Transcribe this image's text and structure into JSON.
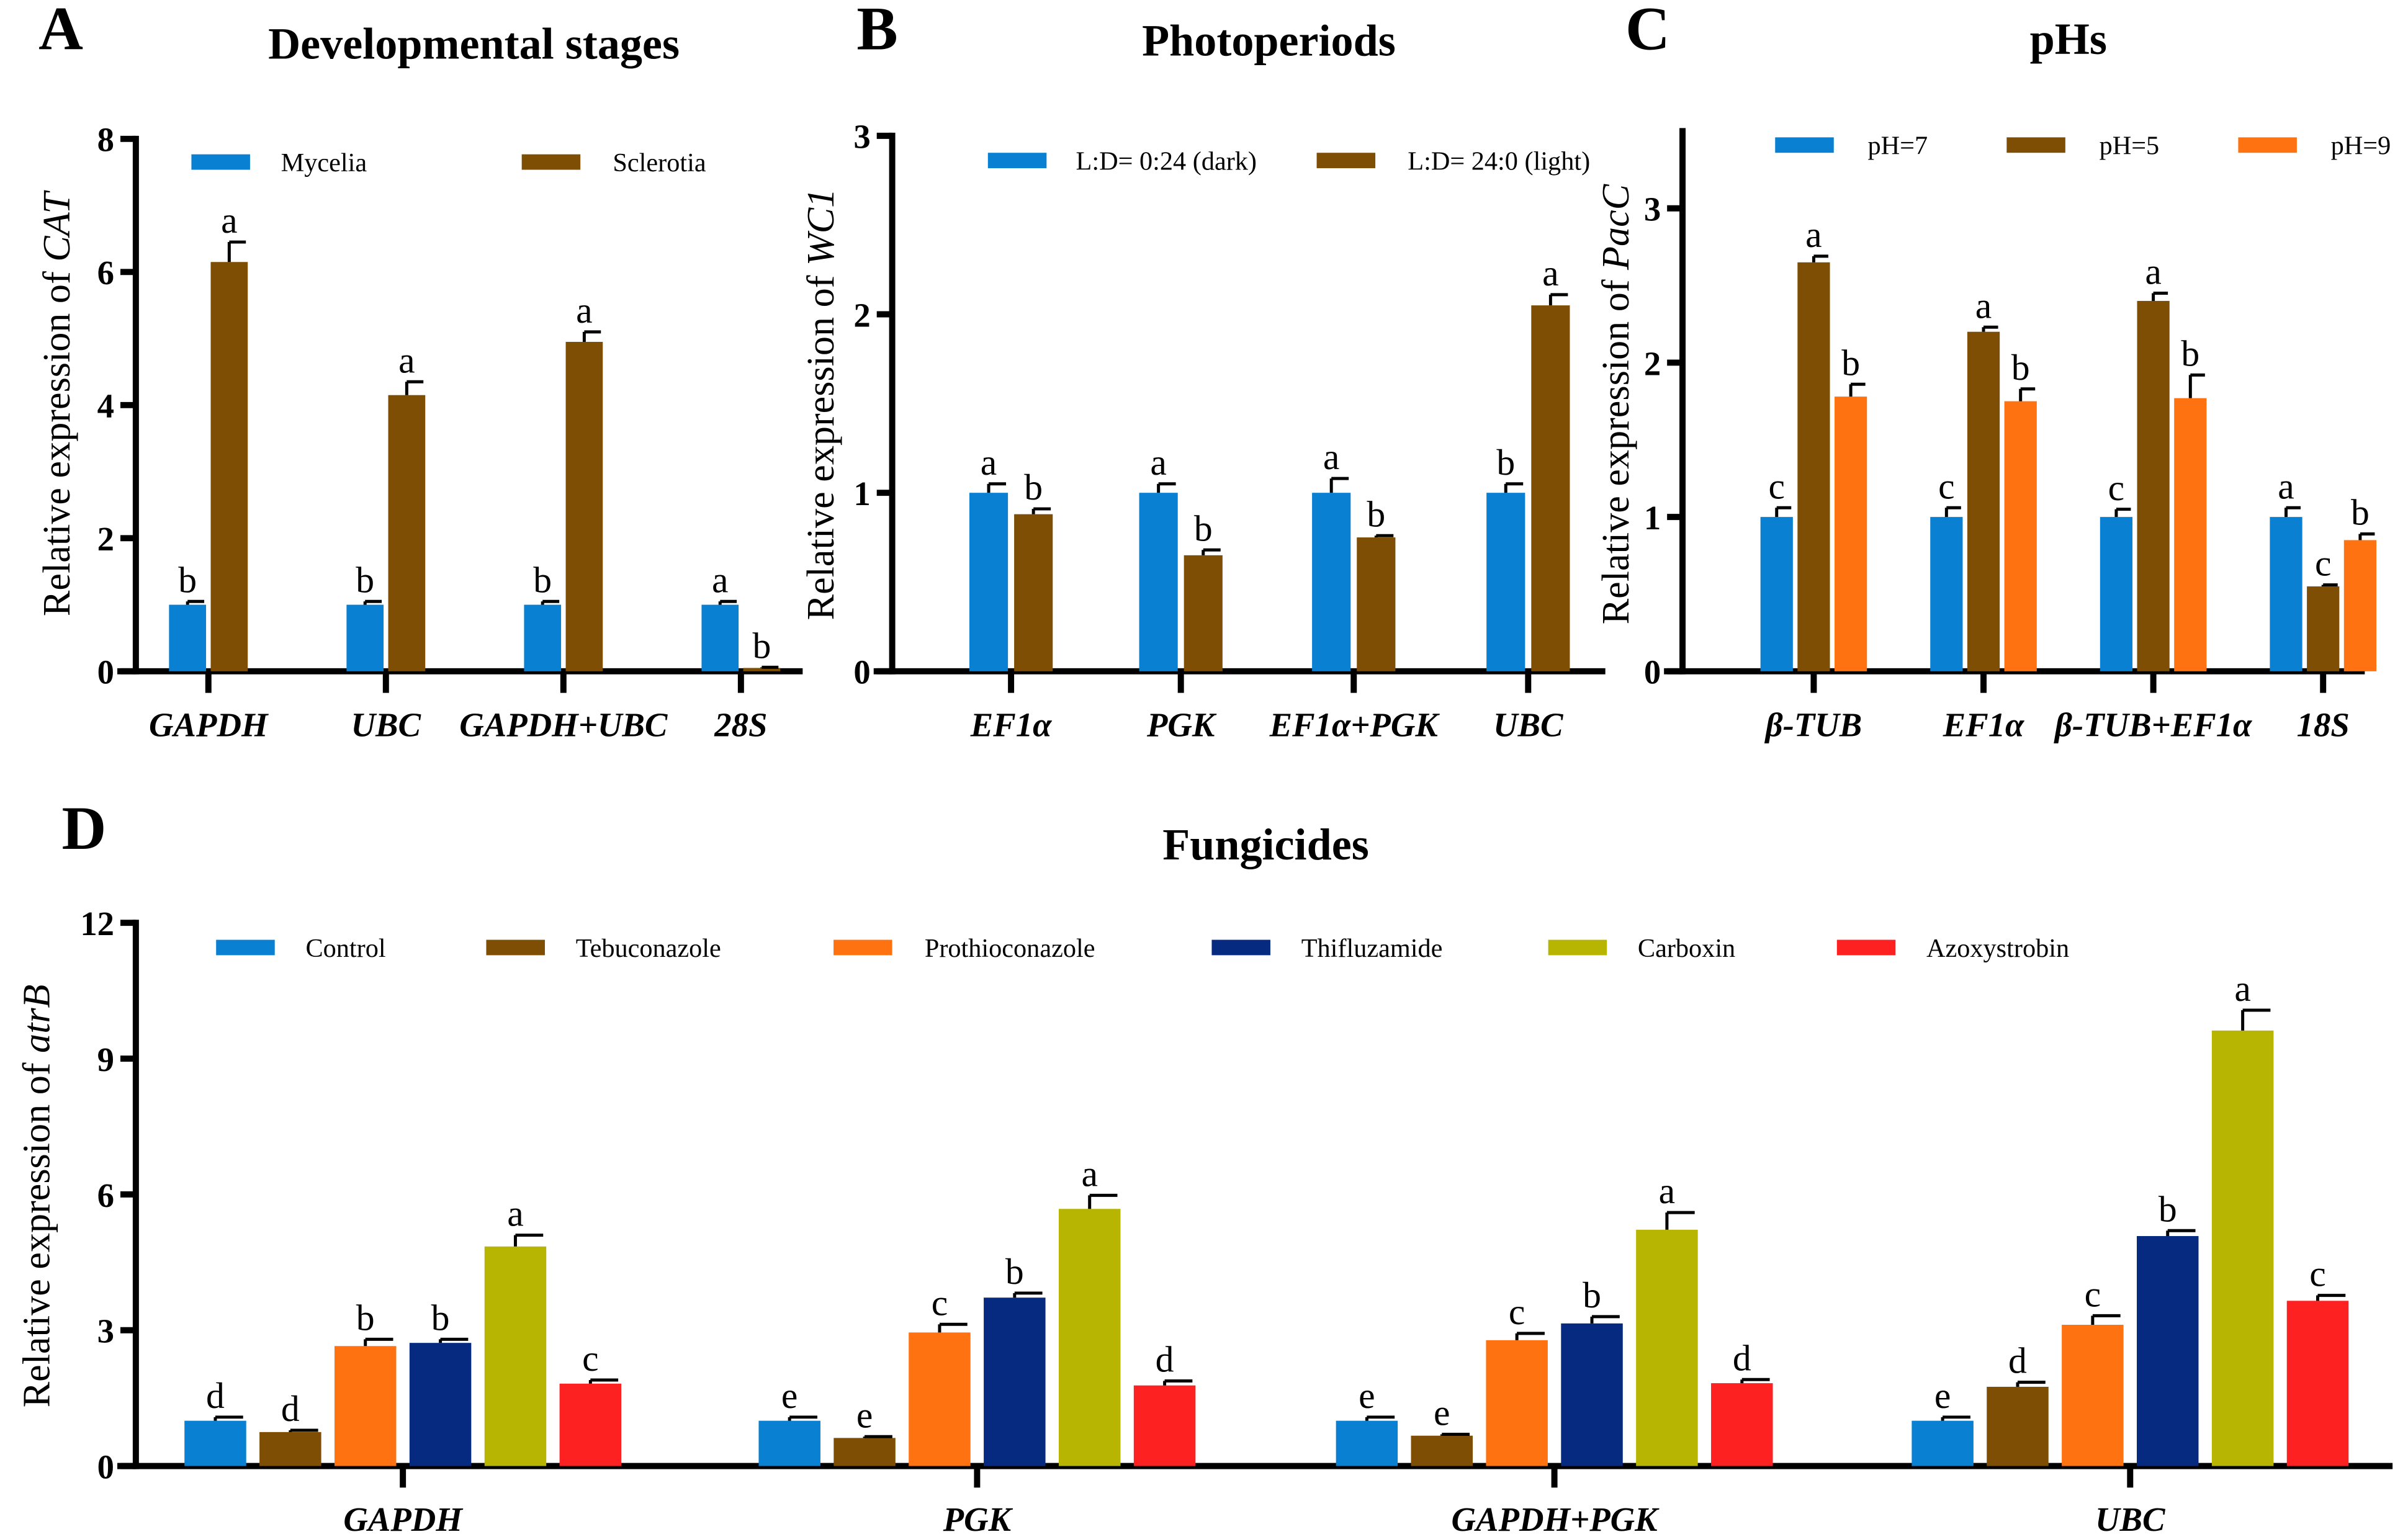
{
  "colors": {
    "blue": "#0a80d2",
    "brown": "#7d4e04",
    "orange": "#ff7212",
    "navy": "#062a80",
    "olive": "#b7b402",
    "red": "#fd2121"
  },
  "chart_data": [
    {
      "type": "bar",
      "panel": "A",
      "title": "Developmental stages",
      "ylabel_prefix": "Relative expression of ",
      "ylabel_gene": "CAT",
      "ylim": [
        0,
        8
      ],
      "yticks": [
        "0",
        "2",
        "4",
        "6",
        "8"
      ],
      "categories": [
        "GAPDH",
        "UBC",
        "GAPDH+UBC",
        "28S"
      ],
      "legend_position": "top",
      "series": [
        {
          "name": "Mycelia",
          "color": "blue",
          "values": [
            1.0,
            1.0,
            1.0,
            1.0
          ],
          "errors": [
            0.05,
            0.05,
            0.05,
            0.05
          ],
          "letters": [
            "b",
            "b",
            "b",
            "a"
          ]
        },
        {
          "name": "Sclerotia",
          "color": "brown",
          "values": [
            6.15,
            4.15,
            4.95,
            0.05
          ],
          "errors": [
            0.3,
            0.2,
            0.15,
            0.01
          ],
          "letters": [
            "a",
            "a",
            "a",
            "b"
          ]
        }
      ]
    },
    {
      "type": "bar",
      "panel": "B",
      "title": "Photoperiods",
      "ylabel_prefix": "Relative expression of ",
      "ylabel_gene": "WC1",
      "ylim": [
        0,
        3
      ],
      "yticks": [
        "0",
        "1",
        "2",
        "3"
      ],
      "categories": [
        "EF1α",
        "PGK",
        "EF1α+PGK",
        "UBC"
      ],
      "legend_position": "top",
      "series": [
        {
          "name": "L:D= 0:24 (dark)",
          "color": "blue",
          "values": [
            1.0,
            1.0,
            1.0,
            1.0
          ],
          "errors": [
            0.05,
            0.05,
            0.08,
            0.05
          ],
          "letters": [
            "a",
            "a",
            "a",
            "b"
          ]
        },
        {
          "name": "L:D= 24:0 (light)",
          "color": "brown",
          "values": [
            0.88,
            0.65,
            0.75,
            2.05
          ],
          "errors": [
            0.03,
            0.03,
            0.01,
            0.06
          ],
          "letters": [
            "b",
            "b",
            "b",
            "a"
          ]
        }
      ]
    },
    {
      "type": "bar",
      "panel": "C",
      "title": "pHs",
      "ylabel_prefix": "Relative expression of ",
      "ylabel_gene": "PacC",
      "ylim": [
        0,
        3.5
      ],
      "yticks": [
        "0",
        "1",
        "2",
        "3"
      ],
      "categories": [
        "β-TUB",
        "EF1α",
        "β-TUB+EF1α",
        "18S"
      ],
      "legend_position": "top",
      "series": [
        {
          "name": "pH=7",
          "color": "blue",
          "values": [
            1.0,
            1.0,
            1.0,
            1.0
          ],
          "errors": [
            0.06,
            0.06,
            0.05,
            0.06
          ],
          "letters": [
            "c",
            "c",
            "c",
            "a"
          ]
        },
        {
          "name": "pH=5",
          "color": "brown",
          "values": [
            2.65,
            2.2,
            2.4,
            0.55
          ],
          "errors": [
            0.04,
            0.03,
            0.05,
            0.01
          ],
          "letters": [
            "a",
            "a",
            "a",
            "c"
          ]
        },
        {
          "name": "pH=9",
          "color": "orange",
          "values": [
            1.78,
            1.75,
            1.77,
            0.85
          ],
          "errors": [
            0.08,
            0.08,
            0.15,
            0.04
          ],
          "letters": [
            "b",
            "b",
            "b",
            "b"
          ]
        }
      ]
    },
    {
      "type": "bar",
      "panel": "D",
      "title": "Fungicides",
      "ylabel_prefix": "Relative expression of ",
      "ylabel_gene": "atrB",
      "ylim": [
        0,
        12
      ],
      "yticks": [
        "0",
        "3",
        "6",
        "9",
        "12"
      ],
      "categories": [
        "GAPDH",
        "PGK",
        "GAPDH+PGK",
        "UBC"
      ],
      "legend_position": "top",
      "series": [
        {
          "name": "Control",
          "color": "blue",
          "values": [
            1.0,
            1.0,
            1.0,
            1.0
          ],
          "errors": [
            0.08,
            0.08,
            0.08,
            0.08
          ],
          "letters": [
            "d",
            "e",
            "e",
            "e"
          ]
        },
        {
          "name": "Tebuconazole",
          "color": "brown",
          "values": [
            0.75,
            0.62,
            0.67,
            1.75
          ],
          "errors": [
            0.04,
            0.03,
            0.03,
            0.1
          ],
          "letters": [
            "d",
            "e",
            "e",
            "d"
          ]
        },
        {
          "name": "Prothioconazole",
          "color": "orange",
          "values": [
            2.65,
            2.95,
            2.78,
            3.12
          ],
          "errors": [
            0.15,
            0.18,
            0.15,
            0.2
          ],
          "letters": [
            "b",
            "c",
            "c",
            "c"
          ]
        },
        {
          "name": "Thifluzamide",
          "color": "navy",
          "values": [
            2.72,
            3.72,
            3.15,
            5.08
          ],
          "errors": [
            0.08,
            0.1,
            0.15,
            0.12
          ],
          "letters": [
            "b",
            "b",
            "b",
            "b"
          ]
        },
        {
          "name": "Carboxin",
          "color": "olive",
          "values": [
            4.85,
            5.68,
            5.22,
            9.62
          ],
          "errors": [
            0.25,
            0.3,
            0.38,
            0.45
          ],
          "letters": [
            "a",
            "a",
            "a",
            "a"
          ]
        },
        {
          "name": "Azoxystrobin",
          "color": "red",
          "values": [
            1.82,
            1.78,
            1.83,
            3.65
          ],
          "errors": [
            0.08,
            0.1,
            0.08,
            0.12
          ],
          "letters": [
            "c",
            "d",
            "d",
            "c"
          ]
        }
      ]
    }
  ]
}
